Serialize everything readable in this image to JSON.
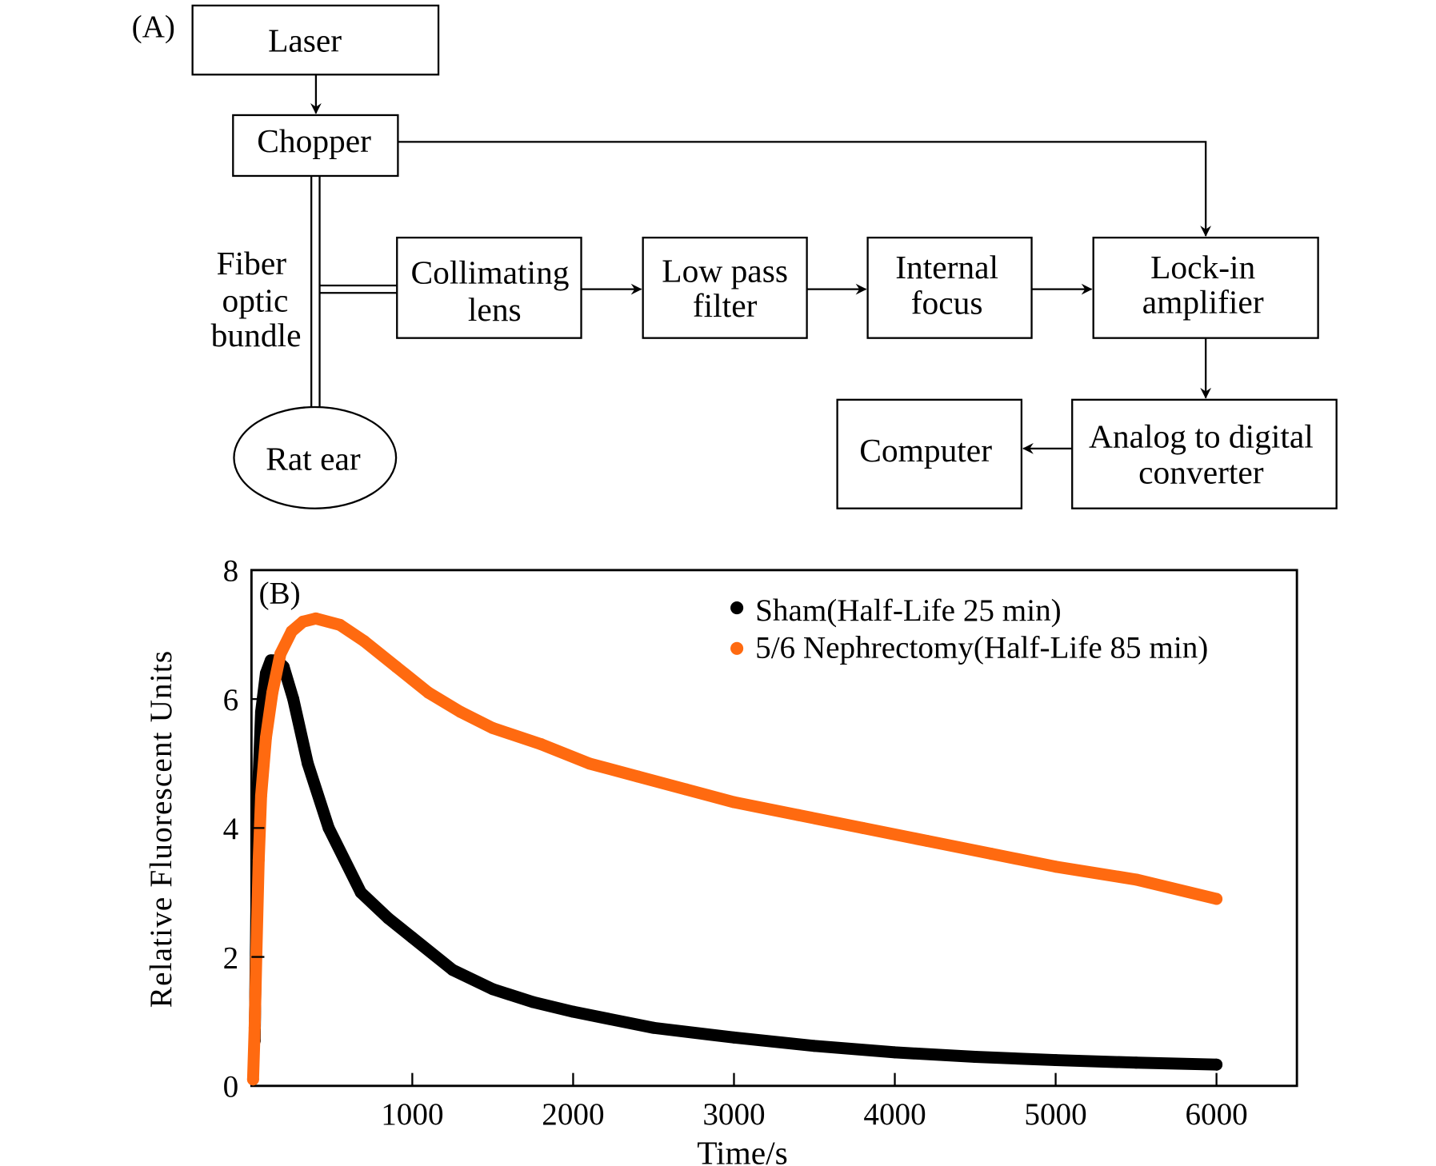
{
  "panel_a": {
    "label": "(A)",
    "laser": "Laser",
    "chopper": "Chopper",
    "fiber": [
      "Fiber",
      "optic",
      "bundle"
    ],
    "rat_ear": "Rat ear",
    "collimating": [
      "Collimating",
      "lens"
    ],
    "lowpass": [
      "Low pass",
      "filter"
    ],
    "internal": [
      "Internal",
      "focus"
    ],
    "lockin": [
      "Lock-in",
      "amplifier"
    ],
    "adc": [
      "Analog to digital",
      "converter"
    ],
    "computer": "Computer"
  },
  "chart_data": {
    "type": "scatter",
    "panel_label": "(B)",
    "xlabel": "Time/s",
    "ylabel": "Relative Fluorescent Units",
    "xlim": [
      0,
      6500
    ],
    "ylim": [
      0,
      8
    ],
    "xticks": [
      1000,
      2000,
      3000,
      4000,
      5000,
      6000
    ],
    "yticks": [
      0,
      2,
      4,
      6,
      8
    ],
    "grid": false,
    "legend": "top-right",
    "series": [
      {
        "name": "Sham(Half-Life 25 min)",
        "color": "#000000",
        "x": [
          20,
          40,
          60,
          90,
          120,
          160,
          200,
          260,
          350,
          480,
          680,
          850,
          1000,
          1250,
          1500,
          1750,
          2000,
          2500,
          3000,
          3500,
          4000,
          4500,
          5000,
          5500,
          6000
        ],
        "y": [
          0.7,
          4.5,
          5.8,
          6.4,
          6.6,
          6.6,
          6.5,
          6.0,
          5.0,
          4.0,
          3.0,
          2.6,
          2.3,
          1.8,
          1.5,
          1.3,
          1.15,
          0.9,
          0.75,
          0.62,
          0.52,
          0.45,
          0.4,
          0.36,
          0.33
        ]
      },
      {
        "name": "5/6 Nephrectomy(Half-Life 85 min)",
        "color": "#ff6a10",
        "x": [
          10,
          20,
          30,
          45,
          60,
          90,
          130,
          180,
          250,
          320,
          400,
          550,
          700,
          900,
          1100,
          1300,
          1500,
          1800,
          2100,
          2400,
          2700,
          3000,
          3400,
          3800,
          4200,
          4600,
          5000,
          5500,
          6000
        ],
        "y": [
          0.1,
          0.9,
          2.0,
          3.5,
          4.5,
          5.4,
          6.1,
          6.7,
          7.05,
          7.2,
          7.25,
          7.15,
          6.9,
          6.5,
          6.1,
          5.8,
          5.55,
          5.3,
          5.0,
          4.8,
          4.6,
          4.4,
          4.2,
          4.0,
          3.8,
          3.6,
          3.4,
          3.2,
          2.9
        ]
      }
    ]
  }
}
